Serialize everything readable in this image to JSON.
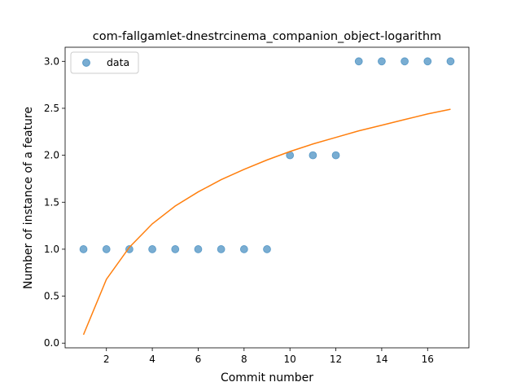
{
  "chart_data": {
    "type": "scatter",
    "title": "com-fallgamlet-dnestrcinema_companion_object-logarithm",
    "xlabel": "Commit number",
    "ylabel": "Number of instance of a feature",
    "xlim": [
      0.2,
      17.8
    ],
    "ylim": [
      -0.05,
      3.15
    ],
    "xticks": [
      2,
      4,
      6,
      8,
      10,
      12,
      14,
      16
    ],
    "yticks": [
      0.0,
      0.5,
      1.0,
      1.5,
      2.0,
      2.5,
      3.0
    ],
    "xtick_labels": [
      "2",
      "4",
      "6",
      "8",
      "10",
      "12",
      "14",
      "16"
    ],
    "ytick_labels": [
      "0.0",
      "0.5",
      "1.0",
      "1.5",
      "2.0",
      "2.5",
      "3.0"
    ],
    "grid": false,
    "legend": {
      "position": "top-left",
      "entries": [
        "data"
      ]
    },
    "series": [
      {
        "name": "data",
        "kind": "scatter",
        "color": "#1f77b4",
        "x": [
          1,
          2,
          3,
          4,
          5,
          6,
          7,
          8,
          9,
          10,
          11,
          12,
          13,
          14,
          15,
          16,
          17
        ],
        "y": [
          1,
          1,
          1,
          1,
          1,
          1,
          1,
          1,
          1,
          2,
          2,
          2,
          3,
          3,
          3,
          3,
          3
        ]
      },
      {
        "kind": "line",
        "color": "#ff7f0e",
        "x": [
          1,
          2,
          3,
          4,
          5,
          6,
          7,
          8,
          9,
          10,
          11,
          12,
          13,
          14,
          15,
          16,
          17
        ],
        "y": [
          0.09,
          0.68,
          1.02,
          1.27,
          1.46,
          1.61,
          1.74,
          1.85,
          1.95,
          2.04,
          2.12,
          2.19,
          2.26,
          2.32,
          2.38,
          2.44,
          2.49
        ]
      }
    ]
  }
}
